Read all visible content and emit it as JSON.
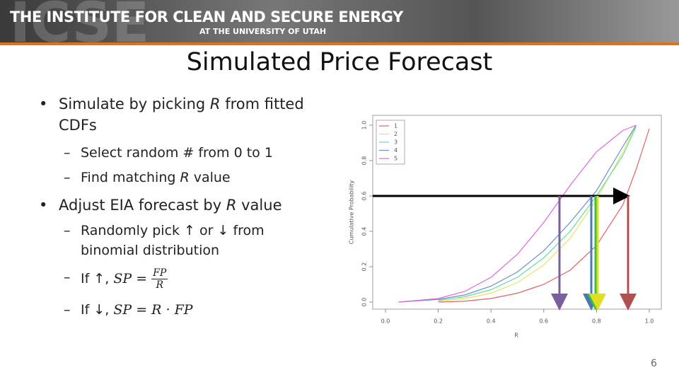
{
  "header": {
    "watermark": "ICSE",
    "title": "THE INSTITUTE FOR CLEAN AND SECURE ENERGY",
    "subtitle": "AT THE UNIVERSITY OF UTAH"
  },
  "slide_title": "Simulated Price Forecast",
  "bullets": [
    {
      "parts": [
        "Simulate by picking ",
        "R",
        " from fitted CDFs"
      ]
    },
    {
      "parts": [
        "Select random # from 0 to 1"
      ]
    },
    {
      "parts": [
        "Find matching ",
        "R",
        " value"
      ]
    },
    {
      "parts": [
        "Adjust EIA forecast by ",
        "R",
        " value"
      ]
    },
    {
      "parts": [
        "Randomly pick ↑ or ↓ from binomial distribution"
      ]
    },
    {
      "parts": [
        "If ↑, ",
        "SP",
        " = ",
        "FP",
        "R"
      ]
    },
    {
      "parts": [
        "If ↓, ",
        "SP",
        " = ",
        "R",
        " · ",
        "FP"
      ]
    }
  ],
  "chart_data": {
    "type": "line",
    "xlabel": "R",
    "ylabel": "Cumulative Probability",
    "x": [
      0.05,
      0.2,
      0.3,
      0.4,
      0.5,
      0.6,
      0.7,
      0.8,
      0.9,
      0.95,
      1.0
    ],
    "series": [
      {
        "name": "1",
        "color": "#e06464",
        "values": [
          null,
          0,
          0.005,
          0.02,
          0.05,
          0.1,
          0.18,
          0.32,
          0.55,
          0.75,
          0.98
        ]
      },
      {
        "name": "2",
        "color": "#e4e466",
        "values": [
          null,
          0.005,
          0.02,
          0.05,
          0.11,
          0.21,
          0.36,
          0.58,
          0.85,
          1.0,
          null
        ]
      },
      {
        "name": "3",
        "color": "#66dca0",
        "values": [
          null,
          0.01,
          0.03,
          0.07,
          0.14,
          0.25,
          0.4,
          0.6,
          0.83,
          0.99,
          null
        ]
      },
      {
        "name": "4",
        "color": "#6690d0",
        "values": [
          0,
          0.015,
          0.04,
          0.09,
          0.17,
          0.29,
          0.45,
          0.63,
          0.88,
          1.0,
          null
        ]
      },
      {
        "name": "5",
        "color": "#e066e0",
        "values": [
          0,
          0.02,
          0.06,
          0.14,
          0.27,
          0.45,
          0.66,
          0.85,
          0.97,
          1.0,
          null
        ]
      }
    ],
    "xlim": [
      0,
      1
    ],
    "ylim": [
      0,
      1
    ],
    "xticks": [
      {
        "value": 0,
        "label": "0.0"
      },
      0.2,
      0.4,
      0.6,
      0.8,
      {
        "value": 1,
        "label": "1.0"
      }
    ],
    "yticks": [
      {
        "value": 0,
        "label": "0.0"
      },
      0.2,
      0.4,
      0.6,
      0.8,
      {
        "value": 1,
        "label": "1.0"
      }
    ]
  },
  "page_number": "6"
}
